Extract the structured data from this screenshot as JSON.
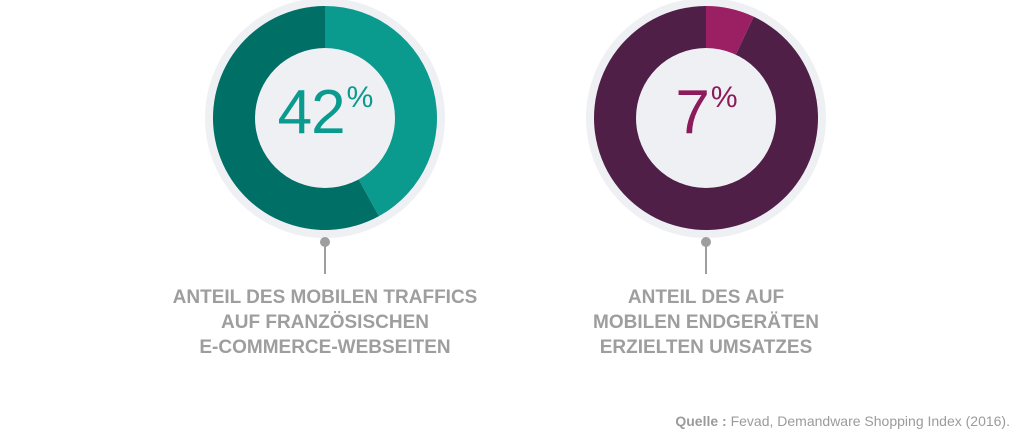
{
  "chart_data": [
    {
      "type": "pie",
      "variant": "donut",
      "value": 42,
      "label": "42",
      "unit": "%",
      "caption": [
        "ANTEIL DES MOBILEN TRAFFICS",
        "AUF FRANZÖSISCHEN",
        "E-COMMERCE-WEBSEITEN"
      ],
      "colors": {
        "highlight": "#0a9a8e",
        "rest": "#006f66",
        "text": "#0a9a8e"
      }
    },
    {
      "type": "pie",
      "variant": "donut",
      "value": 7,
      "label": "7",
      "unit": "%",
      "caption": [
        "ANTEIL DES AUF",
        "MOBILEN ENDGERÄTEN",
        "ERZIELTEN UMSATZES"
      ],
      "colors": {
        "highlight": "#9b1f63",
        "rest": "#4f1f48",
        "text": "#8b1b5b"
      }
    }
  ],
  "source": {
    "label": "Quelle :",
    "text": "Fevad, Demandware Shopping Index (2016)."
  }
}
